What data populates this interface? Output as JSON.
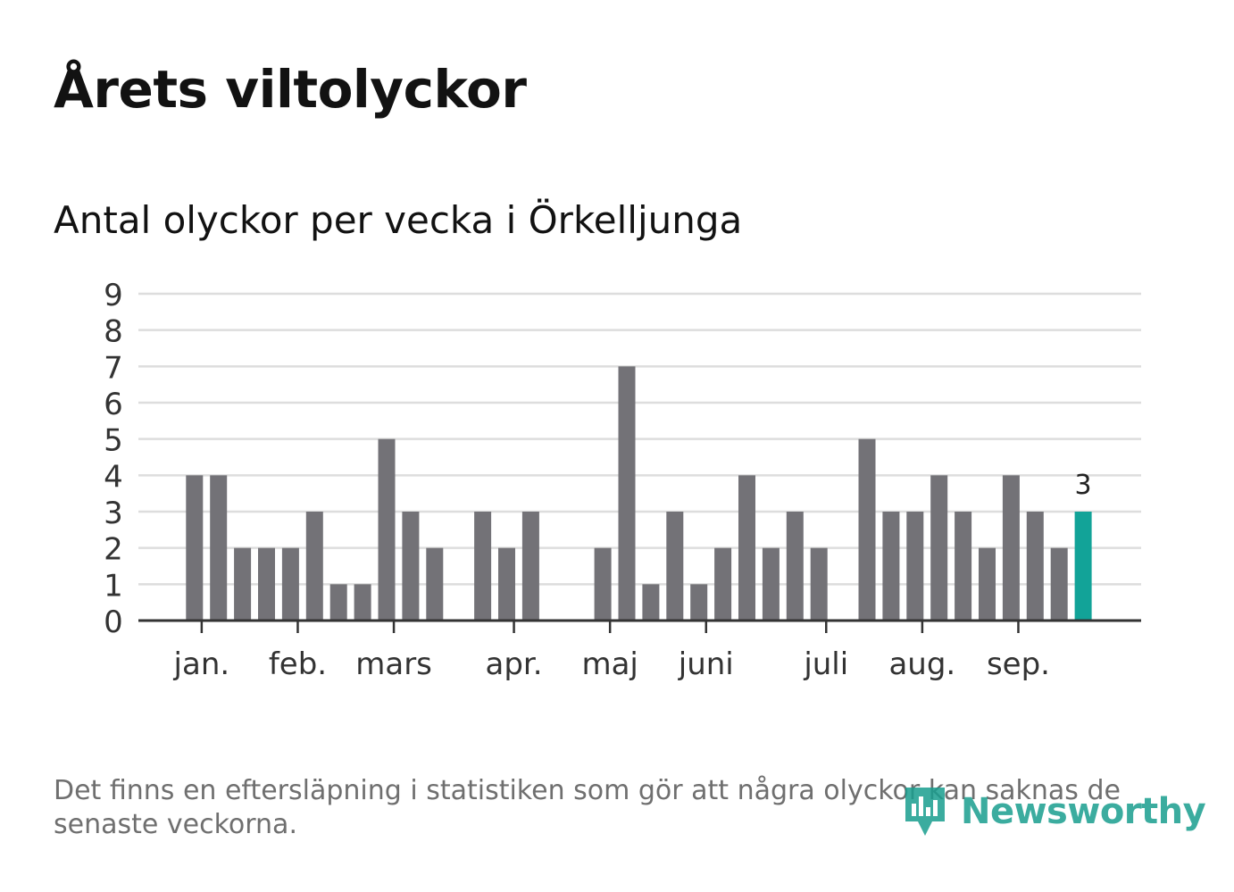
{
  "title": "Årets viltolyckor",
  "subtitle": "Antal olyckor per vecka i Örkelljunga",
  "footnote": "Det finns en eftersläpning i statistiken som gör att några olyckor kan saknas de senaste veckorna.",
  "logo_text": "Newsworthy",
  "colors": {
    "bar": "#737277",
    "highlight": "#12a398",
    "grid": "#dddddd",
    "axis": "#333333",
    "logo": "#1a9e8f"
  },
  "chart_data": {
    "type": "bar",
    "title": "Antal olyckor per vecka i Örkelljunga",
    "xlabel": "",
    "ylabel": "",
    "ylim": [
      0,
      9
    ],
    "y_ticks": [
      0,
      1,
      2,
      3,
      4,
      5,
      6,
      7,
      8,
      9
    ],
    "grid": true,
    "weeks": [
      1,
      2,
      3,
      4,
      5,
      6,
      7,
      8,
      9,
      10,
      11,
      12,
      13,
      14,
      15,
      16,
      17,
      18,
      19,
      20,
      21,
      22,
      23,
      24,
      25,
      26,
      27,
      28,
      29,
      30,
      31,
      32,
      33,
      34,
      35,
      36,
      37,
      38,
      39,
      40,
      41
    ],
    "values": [
      0,
      0,
      4,
      4,
      2,
      2,
      2,
      3,
      1,
      1,
      5,
      3,
      2,
      0,
      3,
      2,
      3,
      0,
      0,
      2,
      7,
      1,
      3,
      1,
      2,
      4,
      2,
      3,
      2,
      0,
      5,
      3,
      3,
      4,
      3,
      2,
      4,
      3,
      2,
      3,
      0
    ],
    "highlight_week": 40,
    "highlight_label": "3",
    "month_labels": [
      {
        "label": "jan.",
        "week": 3.3
      },
      {
        "label": "feb.",
        "week": 7.3
      },
      {
        "label": "mars",
        "week": 11.3
      },
      {
        "label": "apr.",
        "week": 16.3
      },
      {
        "label": "maj",
        "week": 20.3
      },
      {
        "label": "juni",
        "week": 24.3
      },
      {
        "label": "juli",
        "week": 29.3
      },
      {
        "label": "aug.",
        "week": 33.3
      },
      {
        "label": "sep.",
        "week": 37.3
      }
    ]
  }
}
